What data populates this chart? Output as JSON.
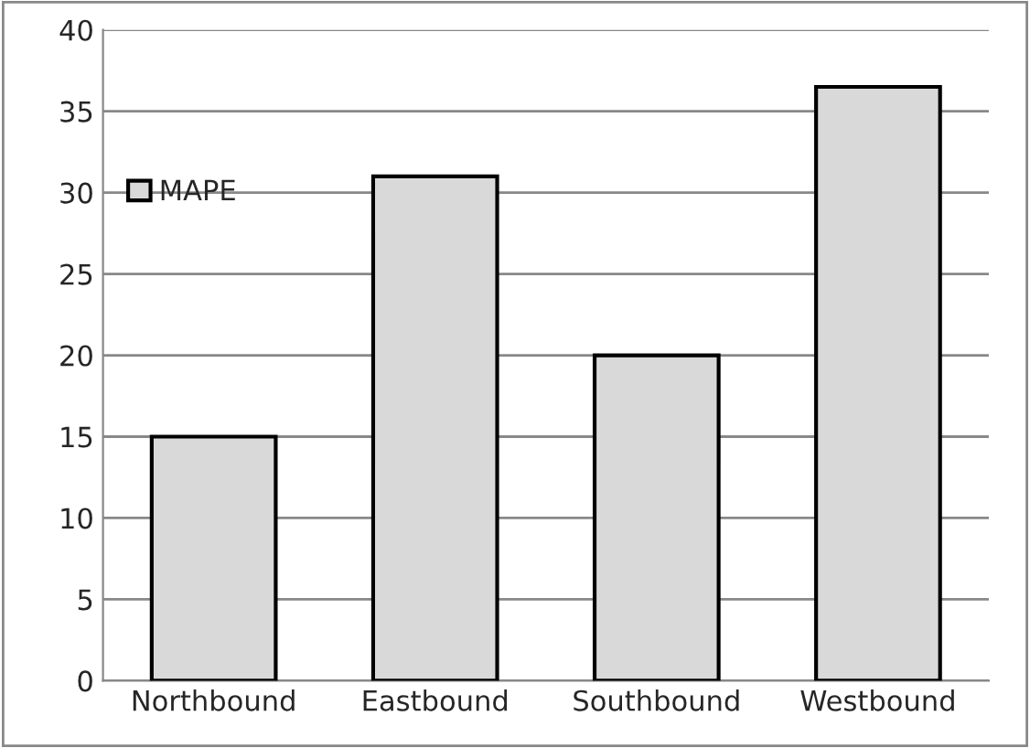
{
  "chart_data": {
    "type": "bar",
    "categories": [
      "Northbound",
      "Eastbound",
      "Southbound",
      "Westbound"
    ],
    "series": [
      {
        "name": "MAPE",
        "color": "#d9d9d9",
        "values": [
          15,
          31,
          20,
          36.5
        ]
      }
    ],
    "ylim": [
      0,
      40
    ],
    "yticks": [
      0,
      5,
      10,
      15,
      20,
      25,
      30,
      35,
      40
    ],
    "grid": "y",
    "legend": "left"
  }
}
